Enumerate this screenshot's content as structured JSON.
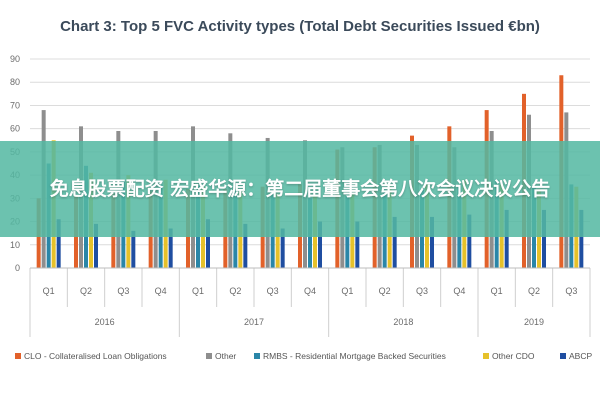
{
  "chart_data": {
    "type": "bar",
    "title": "Chart 3: Top 5 FVC Activity types (Total Debt Securities Issued €bn)",
    "ylim": [
      0,
      90
    ],
    "yticks": [
      0,
      10,
      20,
      30,
      40,
      50,
      60,
      70,
      80,
      90
    ],
    "grid": true,
    "legend_position": "bottom",
    "categories": [
      "Q1",
      "Q2",
      "Q3",
      "Q4",
      "Q1",
      "Q2",
      "Q3",
      "Q4",
      "Q1",
      "Q2",
      "Q3",
      "Q4",
      "Q1",
      "Q2",
      "Q3"
    ],
    "years": [
      {
        "label": "2016",
        "count": 4
      },
      {
        "label": "2017",
        "count": 4
      },
      {
        "label": "2018",
        "count": 4
      },
      {
        "label": "2019",
        "count": 3
      }
    ],
    "series": [
      {
        "name": "CLO - Collateralised Loan Obligations",
        "color": "#e2612a",
        "values": [
          30,
          31,
          32,
          33,
          34,
          34,
          35,
          36,
          51,
          52,
          57,
          61,
          68,
          75,
          83
        ]
      },
      {
        "name": "Other",
        "color": "#8e8e8e",
        "values": [
          68,
          61,
          59,
          59,
          61,
          58,
          56,
          55,
          52,
          53,
          53,
          52,
          59,
          66,
          67
        ]
      },
      {
        "name": "RMBS - Residential Mortgage Backed Securities",
        "color": "#2a86a8",
        "values": [
          45,
          44,
          38,
          36,
          36,
          34,
          33,
          30,
          31,
          34,
          34,
          36,
          38,
          35,
          36
        ]
      },
      {
        "name": "Other CDO",
        "color": "#e6c12a",
        "values": [
          55,
          41,
          40,
          38,
          35,
          33,
          32,
          31,
          32,
          36,
          37,
          38,
          36,
          34,
          35
        ]
      },
      {
        "name": "ABCP",
        "color": "#1f4ea1",
        "values": [
          21,
          19,
          16,
          17,
          21,
          19,
          17,
          20,
          20,
          22,
          22,
          23,
          25,
          25,
          25
        ]
      }
    ]
  },
  "overlay": {
    "text": "免息股票配资 宏盛华源：第二届董事会第八次会议决议公告"
  }
}
